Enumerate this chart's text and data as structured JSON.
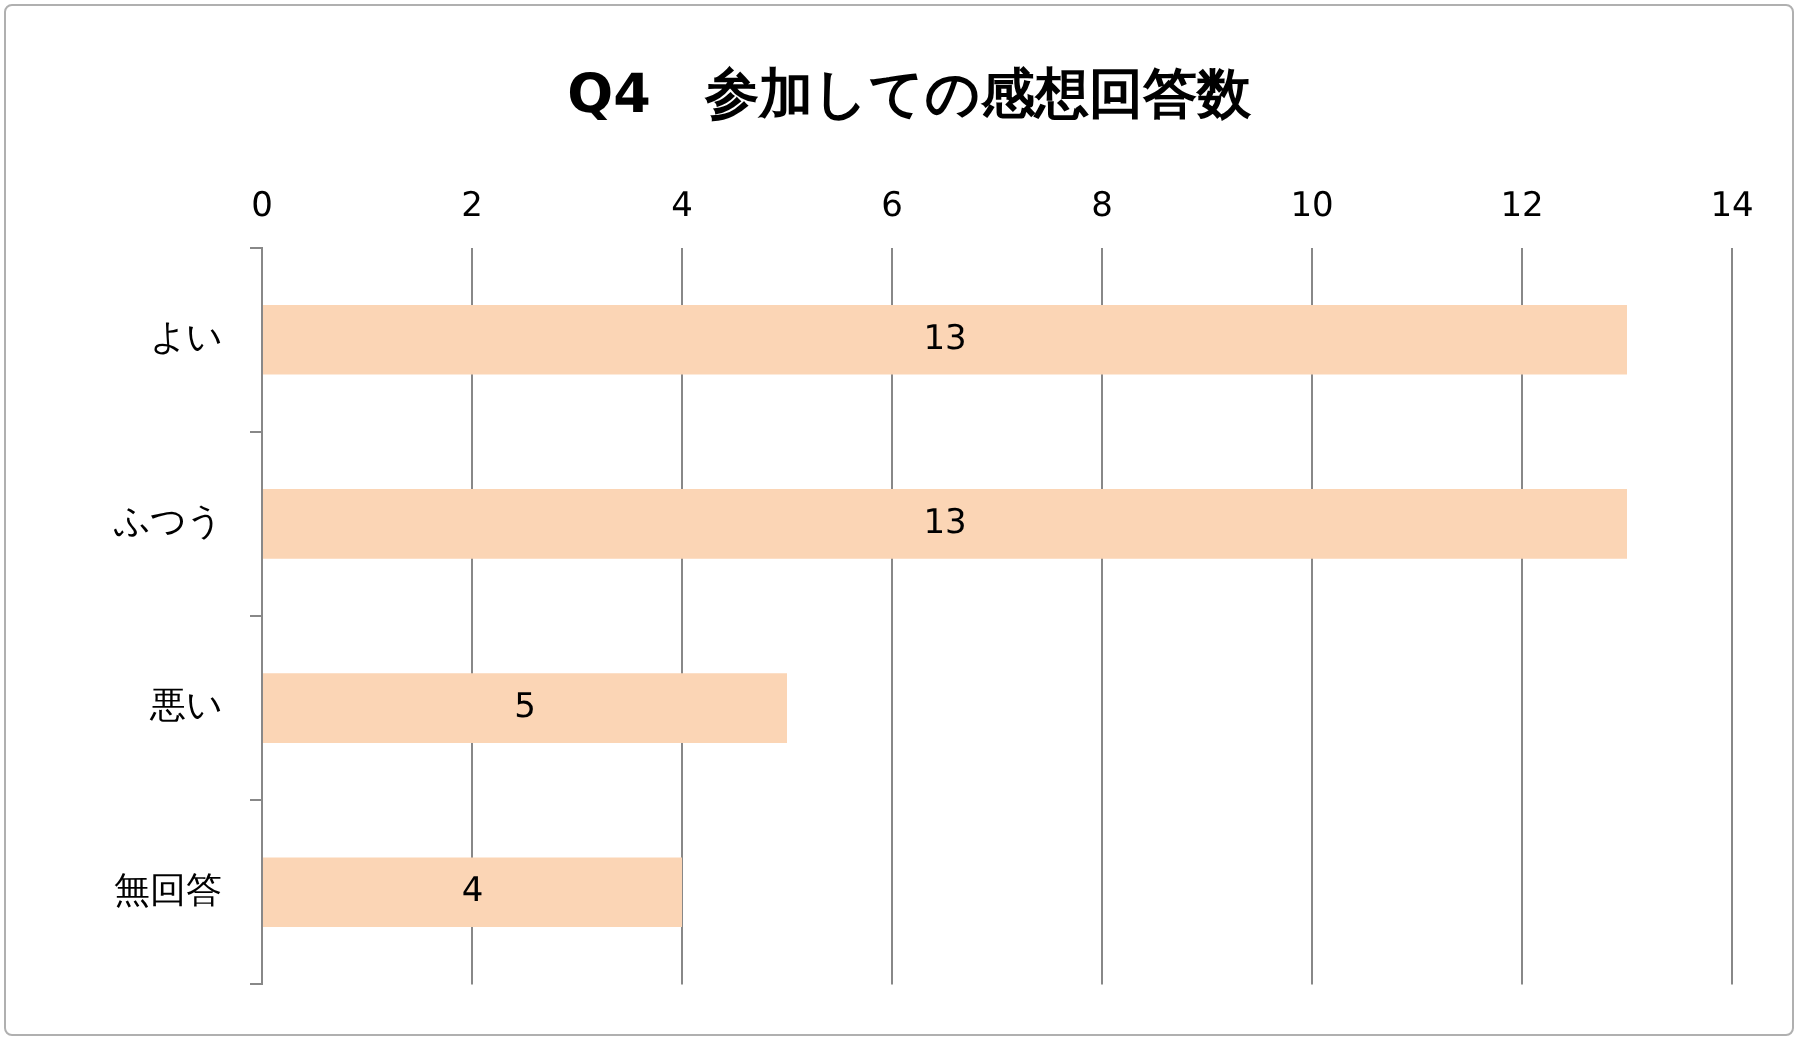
{
  "chart_data": {
    "type": "bar",
    "orientation": "horizontal",
    "title": "Q4　参加しての感想回答数",
    "categories": [
      "よい",
      "ふつう",
      "悪い",
      "無回答"
    ],
    "values": [
      13,
      13,
      5,
      4
    ],
    "color": "#fbd5b5",
    "xlim": [
      0,
      14
    ],
    "xticks": [
      0,
      2,
      4,
      6,
      8,
      10,
      12,
      14
    ],
    "grid": "x",
    "data_labels": true
  }
}
